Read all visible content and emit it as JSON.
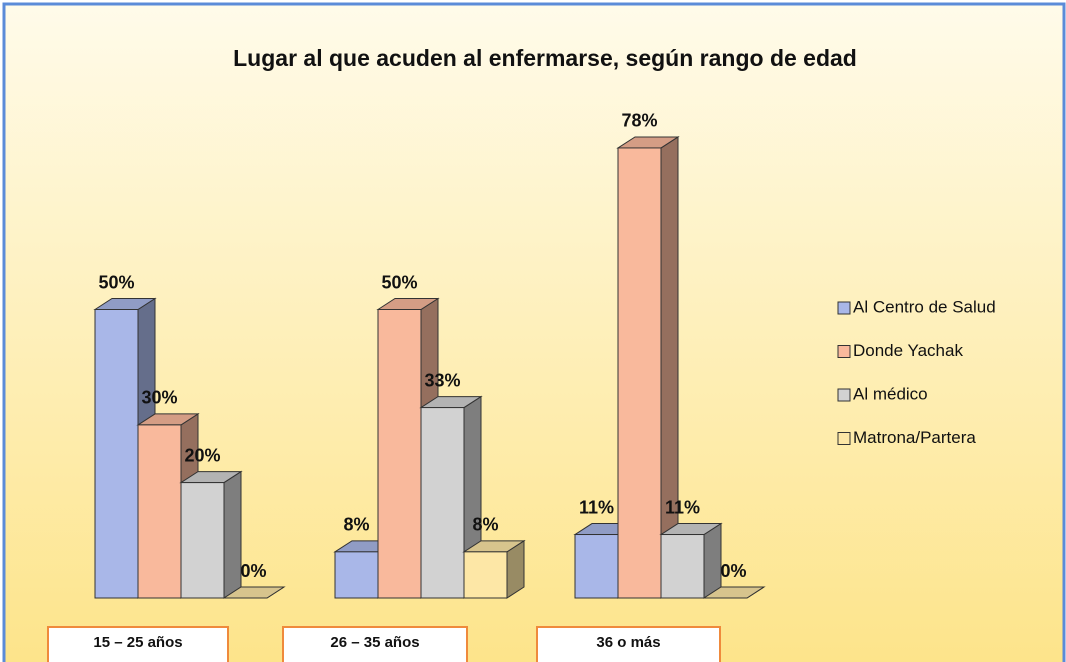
{
  "chart_data": {
    "type": "bar3d",
    "title": "Lugar al que acuden al enfermarse, según rango de edad",
    "categories": [
      "15 – 25 años",
      "26 – 35 años",
      "36 o más"
    ],
    "series": [
      {
        "name": "Al Centro de Salud",
        "color": "#a9b7e8",
        "values": [
          50,
          8,
          11
        ],
        "value_labels": [
          "50%",
          "8%",
          "11%"
        ]
      },
      {
        "name": "Donde Yachak",
        "color": "#f9b99c",
        "values": [
          30,
          50,
          78
        ],
        "value_labels": [
          "30%",
          "50%",
          "78%"
        ]
      },
      {
        "name": "Al médico",
        "color": "#d2d2d2",
        "values": [
          20,
          33,
          11
        ],
        "value_labels": [
          "20%",
          "33%",
          "11%"
        ]
      },
      {
        "name": "Matrona/Partera",
        "color": "#fde7a6",
        "values": [
          0,
          8,
          0
        ],
        "value_labels": [
          "0%",
          "8%",
          "0%"
        ]
      }
    ],
    "legend": "right"
  }
}
